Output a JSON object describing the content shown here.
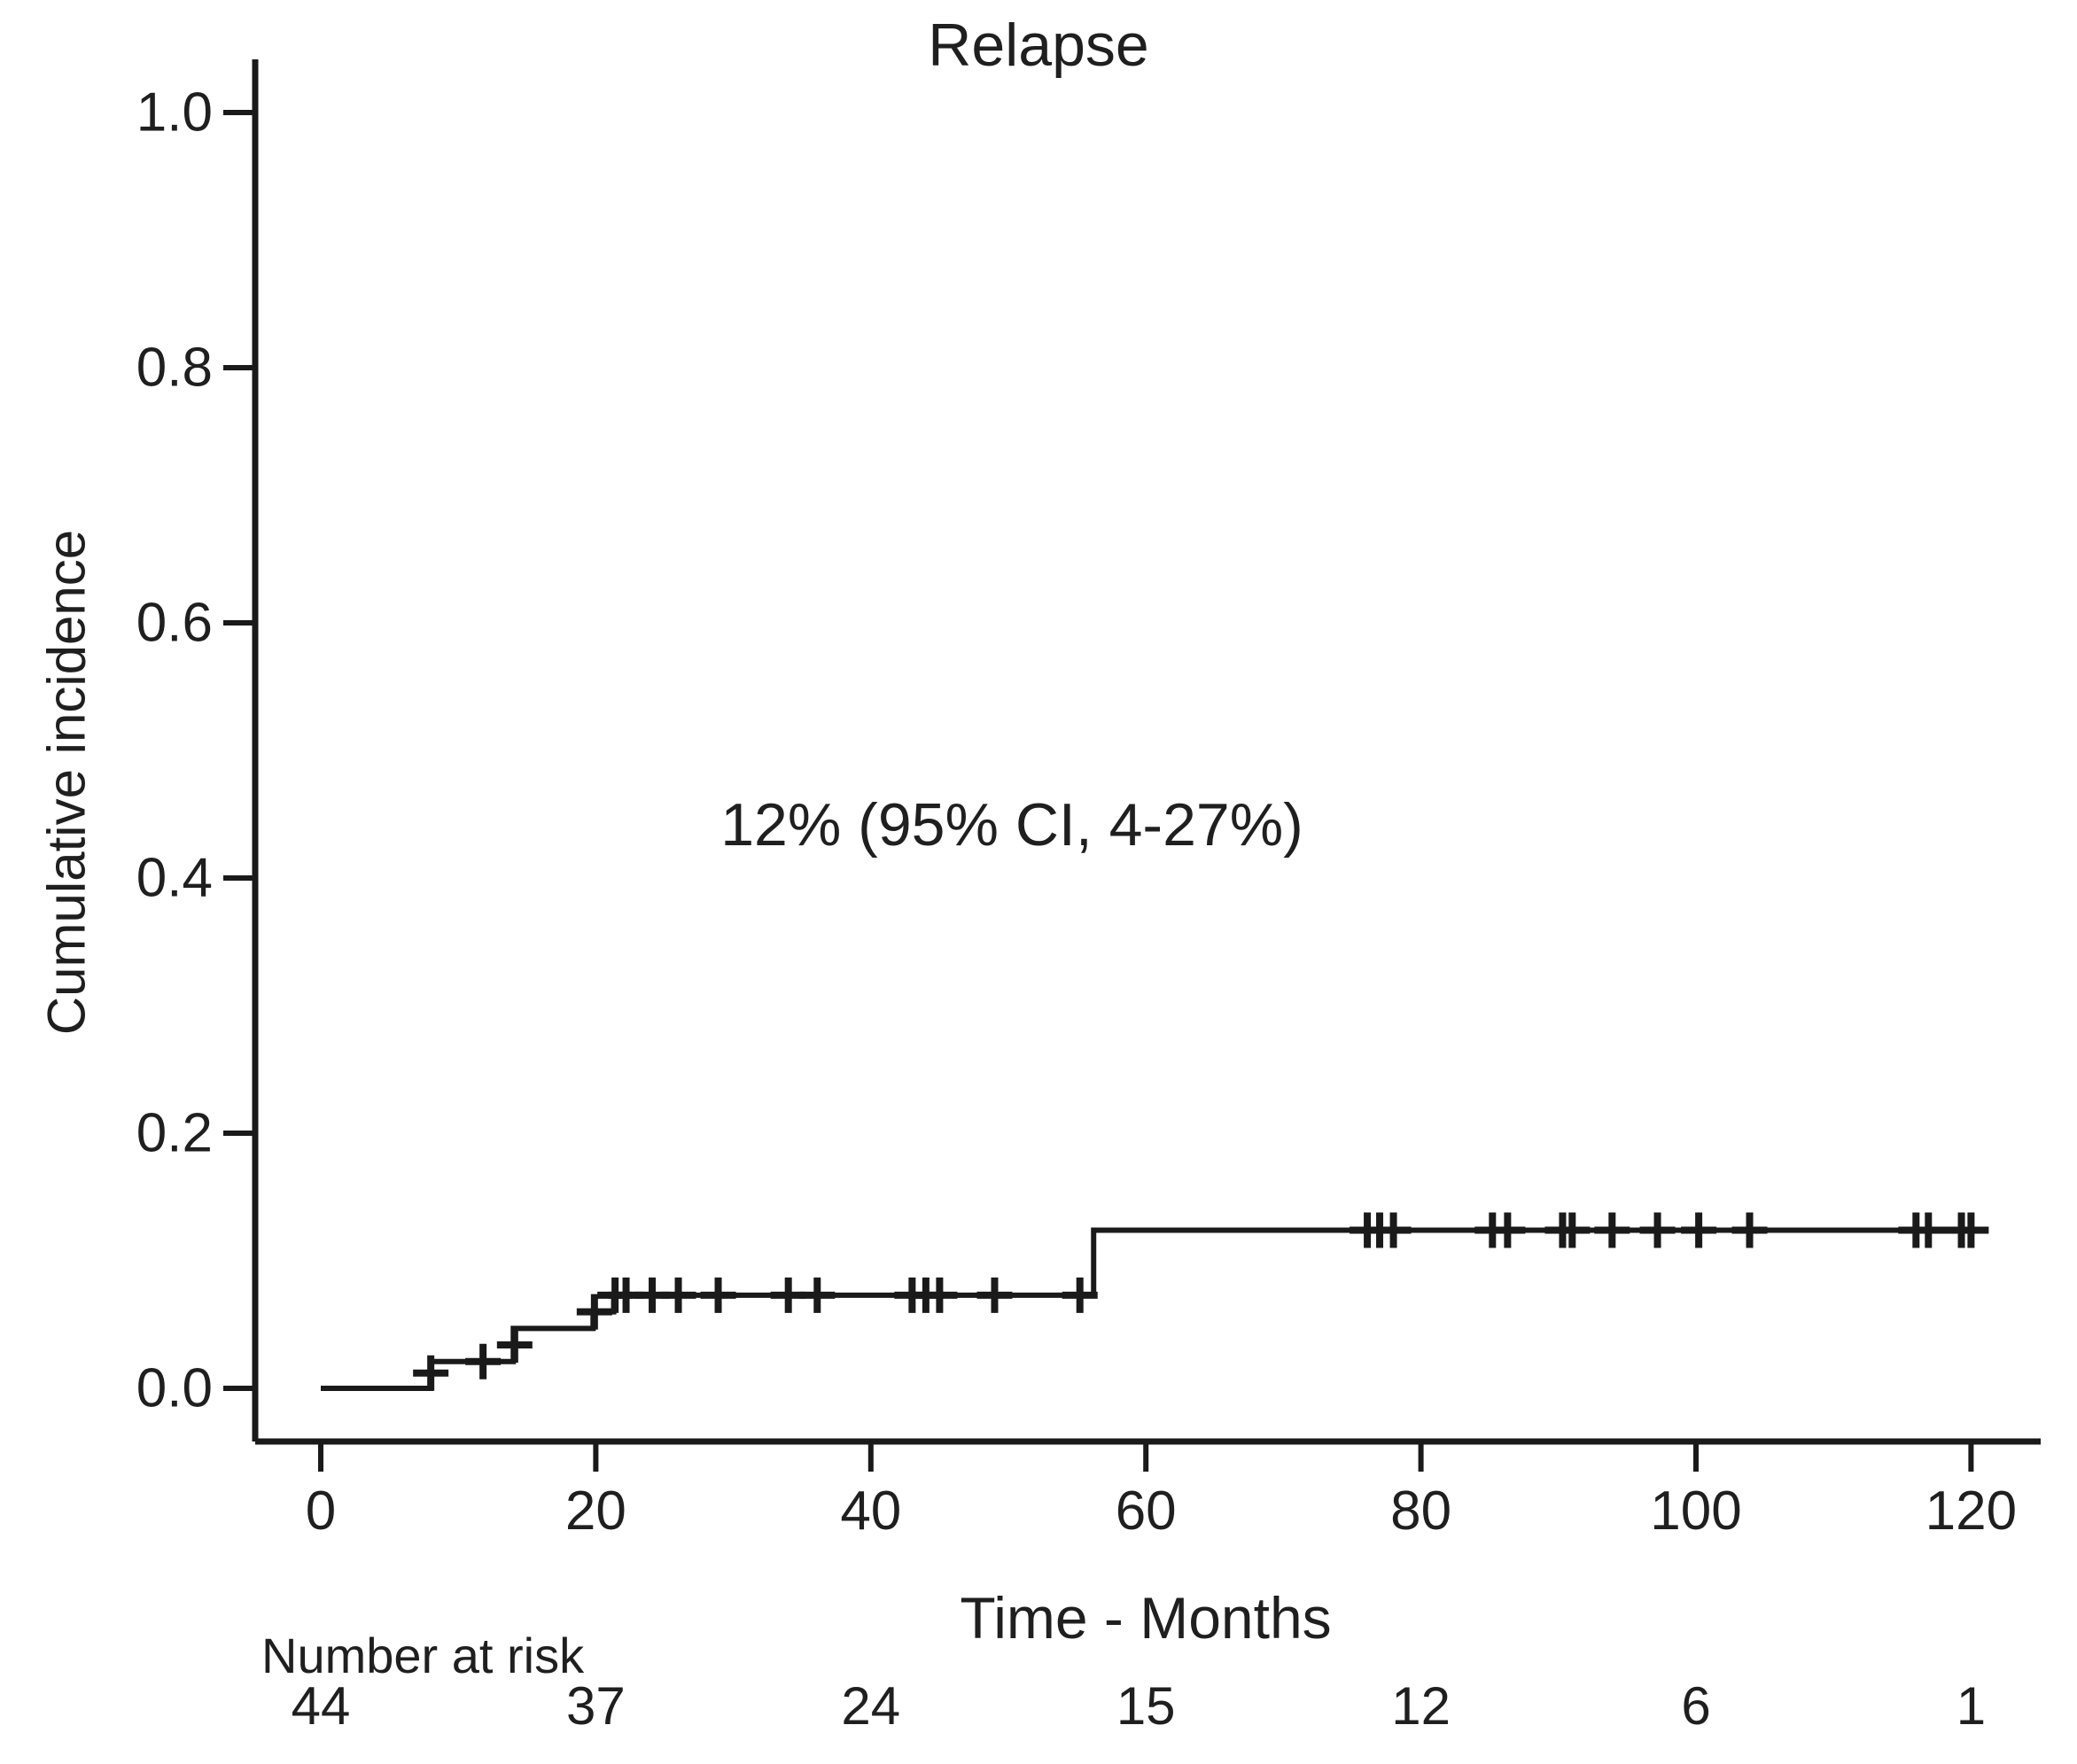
{
  "figure": {
    "background": "#ffffff"
  },
  "colors": {
    "line": "#1a1a1a",
    "text": "#1f1f1f"
  },
  "chart_data": {
    "type": "line",
    "subtype": "step-function-cumulative-incidence-with-censor-marks",
    "title": "Relapse",
    "xlabel": "Time - Months",
    "ylabel": "Cumulative incidence",
    "annotation": "12% (95% CI, 4-27%)",
    "xlim": [
      0,
      125
    ],
    "ylim": [
      0,
      1.04
    ],
    "grid": false,
    "legend": "none",
    "x_ticks": [
      {
        "value": 0,
        "label": "0"
      },
      {
        "value": 20,
        "label": "20"
      },
      {
        "value": 40,
        "label": "40"
      },
      {
        "value": 60,
        "label": "60"
      },
      {
        "value": 80,
        "label": "80"
      },
      {
        "value": 100,
        "label": "100"
      },
      {
        "value": 120,
        "label": "120"
      }
    ],
    "y_ticks": [
      {
        "value": 0.0,
        "label": "0.0"
      },
      {
        "value": 0.2,
        "label": "0.2"
      },
      {
        "value": 0.4,
        "label": "0.4"
      },
      {
        "value": 0.6,
        "label": "0.6"
      },
      {
        "value": 0.8,
        "label": "0.8"
      },
      {
        "value": 1.0,
        "label": "1.0"
      }
    ],
    "series": [
      {
        "name": "Relapse cumulative incidence",
        "points": [
          [
            0,
            0
          ],
          [
            8,
            0
          ],
          [
            8,
            0.021
          ],
          [
            14,
            0.021
          ],
          [
            14,
            0.047
          ],
          [
            19.8,
            0.047
          ],
          [
            19.8,
            0.06
          ],
          [
            21.3,
            0.06
          ],
          [
            21.3,
            0.073
          ],
          [
            56.2,
            0.073
          ],
          [
            56.2,
            0.124
          ],
          [
            120.8,
            0.124
          ]
        ]
      }
    ],
    "censor_marks": [
      [
        8,
        0.012
      ],
      [
        11.8,
        0.021
      ],
      [
        14.1,
        0.034
      ],
      [
        19.9,
        0.06
      ],
      [
        21.4,
        0.073
      ],
      [
        22.2,
        0.073
      ],
      [
        24.1,
        0.073
      ],
      [
        26,
        0.073
      ],
      [
        28.9,
        0.073
      ],
      [
        34,
        0.073
      ],
      [
        36.1,
        0.073
      ],
      [
        43,
        0.073
      ],
      [
        44,
        0.073
      ],
      [
        45,
        0.073
      ],
      [
        49,
        0.073
      ],
      [
        55.2,
        0.073
      ],
      [
        76.1,
        0.124
      ],
      [
        77,
        0.124
      ],
      [
        78,
        0.124
      ],
      [
        85.2,
        0.124
      ],
      [
        86.3,
        0.124
      ],
      [
        90.3,
        0.124
      ],
      [
        91,
        0.124
      ],
      [
        93.9,
        0.124
      ],
      [
        97.2,
        0.124
      ],
      [
        100.2,
        0.124
      ],
      [
        103.9,
        0.124
      ],
      [
        116,
        0.124
      ],
      [
        116.9,
        0.124
      ],
      [
        119.3,
        0.124
      ],
      [
        120,
        0.124
      ]
    ],
    "number_at_risk": {
      "label": "Number at risk",
      "times": [
        0,
        20,
        40,
        60,
        80,
        100,
        120
      ],
      "counts": [
        44,
        37,
        24,
        15,
        12,
        6,
        1
      ]
    }
  }
}
